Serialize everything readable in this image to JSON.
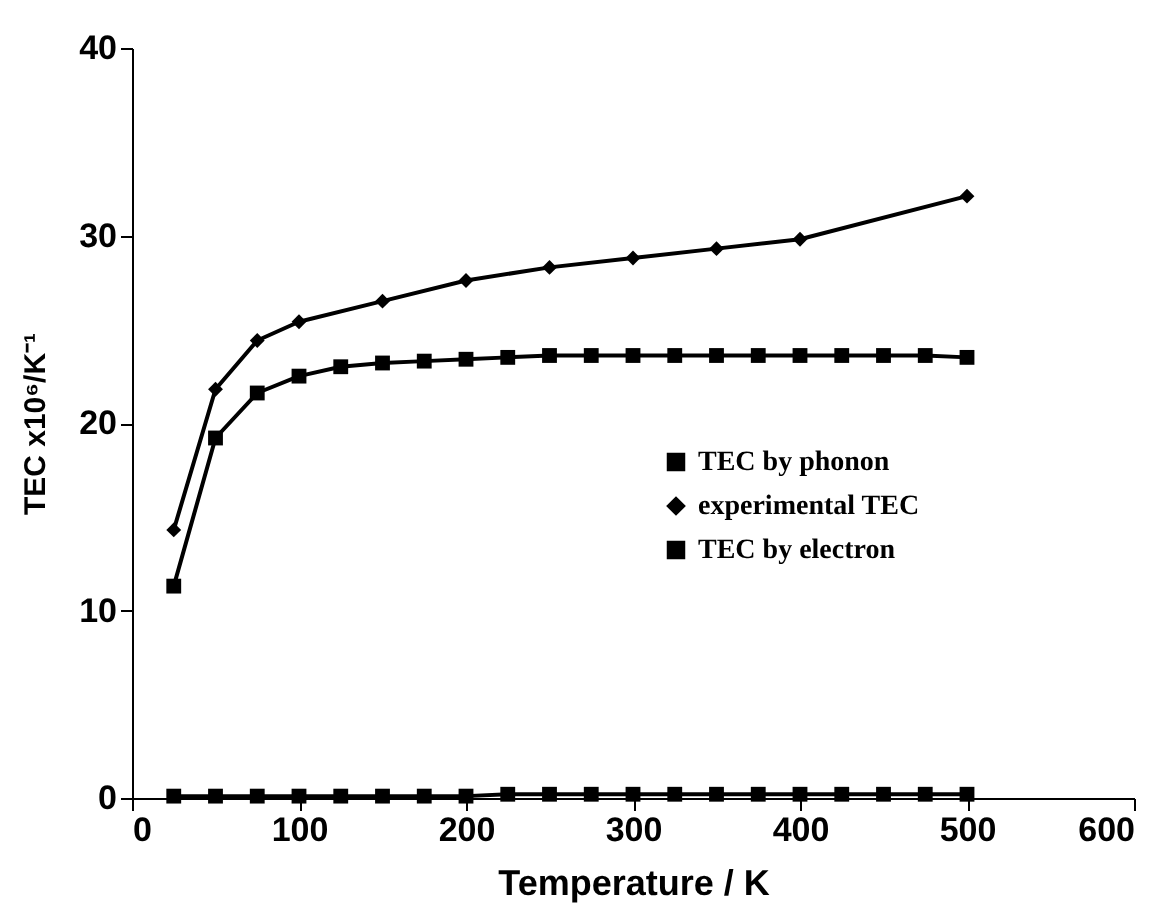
{
  "chart_data": {
    "type": "line",
    "xlabel": "Temperature  / K",
    "ylabel": "TEC  x10⁶/K⁻¹",
    "xlim": [
      0,
      600
    ],
    "xticks": [
      0,
      100,
      200,
      300,
      400,
      500,
      600
    ],
    "ylim": [
      0,
      40
    ],
    "yticks": [
      0,
      10,
      20,
      30,
      40
    ],
    "grid": false,
    "legend": "right",
    "line_style": "solid",
    "series": [
      {
        "name": "TEC by phonon",
        "color": "#000000",
        "marker": "square",
        "x": [
          25,
          50,
          75,
          100,
          125,
          150,
          175,
          200,
          225,
          250,
          275,
          300,
          325,
          350,
          375,
          400,
          425,
          450,
          475,
          500
        ],
        "values": [
          11.3,
          19.2,
          21.6,
          22.5,
          23.0,
          23.2,
          23.3,
          23.4,
          23.5,
          23.6,
          23.6,
          23.6,
          23.6,
          23.6,
          23.6,
          23.6,
          23.6,
          23.6,
          23.6,
          23.5
        ]
      },
      {
        "name": "experimental TEC",
        "color": "#000000",
        "marker": "diamond",
        "x": [
          25,
          50,
          75,
          100,
          150,
          200,
          250,
          300,
          350,
          400,
          500
        ],
        "values": [
          14.3,
          21.8,
          24.4,
          25.4,
          26.5,
          27.6,
          28.3,
          28.8,
          29.3,
          29.8,
          32.1
        ]
      },
      {
        "name": "TEC by electron",
        "color": "#000000",
        "marker": "square",
        "x": [
          25,
          50,
          75,
          100,
          125,
          150,
          175,
          200,
          225,
          250,
          275,
          300,
          325,
          350,
          375,
          400,
          425,
          450,
          475,
          500
        ],
        "values": [
          0.1,
          0.1,
          0.1,
          0.1,
          0.1,
          0.1,
          0.1,
          0.1,
          0.2,
          0.2,
          0.2,
          0.2,
          0.2,
          0.2,
          0.2,
          0.2,
          0.2,
          0.2,
          0.2,
          0.2
        ]
      }
    ]
  }
}
